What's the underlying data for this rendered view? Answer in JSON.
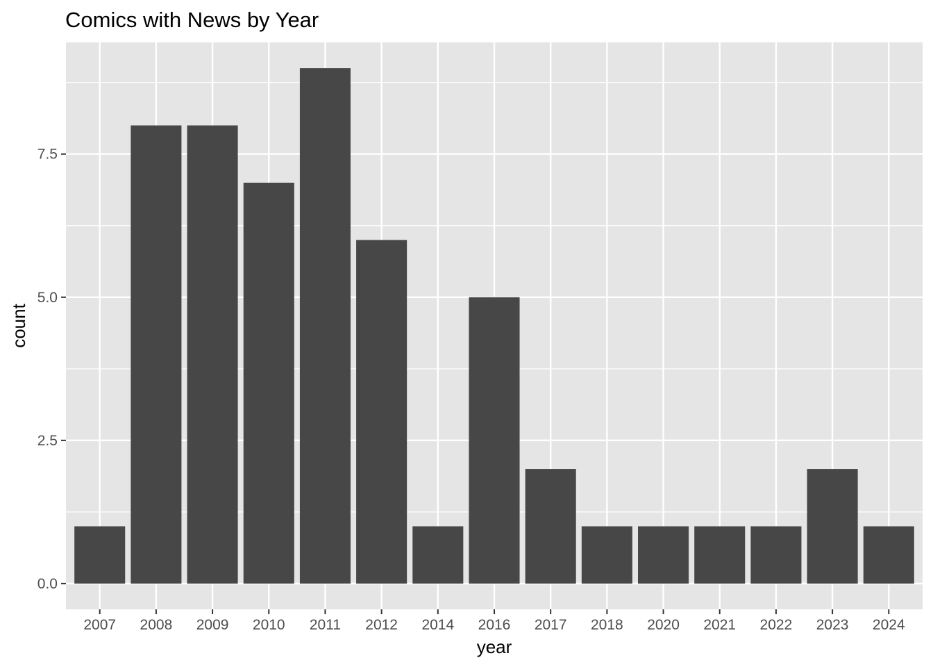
{
  "chart_data": {
    "type": "bar",
    "title": "Comics with News by Year",
    "xlabel": "year",
    "ylabel": "count",
    "categories": [
      "2007",
      "2008",
      "2009",
      "2010",
      "2011",
      "2012",
      "2014",
      "2016",
      "2017",
      "2018",
      "2020",
      "2021",
      "2022",
      "2023",
      "2024"
    ],
    "values": [
      1,
      8,
      8,
      7,
      9,
      6,
      1,
      5,
      2,
      1,
      1,
      1,
      1,
      2,
      1
    ],
    "ylim": [
      -0.45,
      9.45
    ],
    "yticks": [
      0,
      2.5,
      5,
      7.5
    ],
    "ytick_labels": [
      "0.0",
      "2.5",
      "5.0",
      "7.5"
    ],
    "grid": true,
    "legend": "none",
    "colors": {
      "bar": "#474747",
      "panel": "#E5E5E5",
      "grid": "#FFFFFF",
      "tick_text": "#4D4D4D",
      "tick_mark": "#333333"
    }
  }
}
